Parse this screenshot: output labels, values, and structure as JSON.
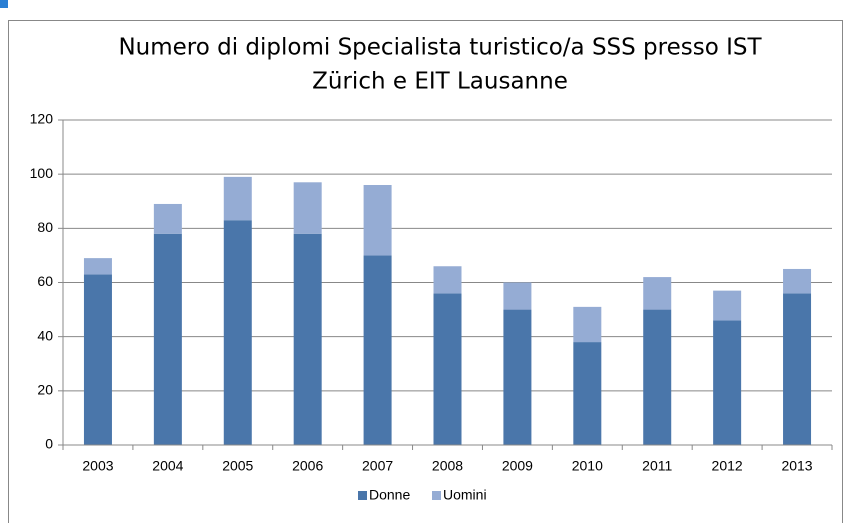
{
  "chart_data": {
    "type": "stacked_bar",
    "title": [
      "Numero di diplomi Specialista turistico/a SSS presso IST",
      "Zürich e EIT Lausanne"
    ],
    "categories": [
      "2003",
      "2004",
      "2005",
      "2006",
      "2007",
      "2008",
      "2009",
      "2010",
      "2011",
      "2012",
      "2013"
    ],
    "series": [
      {
        "name": "Donne",
        "color": "#4a76aa",
        "values": [
          63,
          78,
          83,
          78,
          70,
          56,
          50,
          38,
          50,
          46,
          56
        ]
      },
      {
        "name": "Uomini",
        "color": "#95acd4",
        "values": [
          6,
          11,
          16,
          19,
          26,
          10,
          10,
          13,
          12,
          11,
          9
        ]
      }
    ],
    "ylim": [
      0,
      120
    ],
    "yticks": [
      0,
      20,
      40,
      60,
      80,
      100,
      120
    ],
    "grid": true,
    "legend": "bottom"
  }
}
